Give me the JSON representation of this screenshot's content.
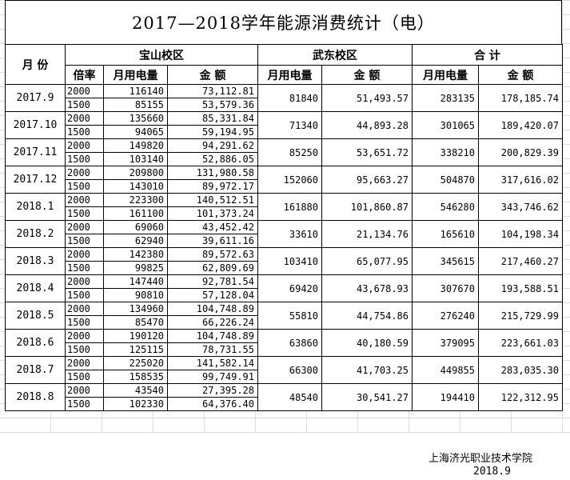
{
  "title": "2017—2018学年能源消费统计（电）",
  "headers": {
    "month": "月  份",
    "baoshan": "宝山校区",
    "wudong": "武东校区",
    "total": "合    计",
    "rate": "倍率",
    "usage": "月用电量",
    "amount": "金    额"
  },
  "rows": [
    {
      "month": "2017.9",
      "bs": [
        [
          "2000",
          "116140",
          "73,112.81"
        ],
        [
          "1500",
          "85155",
          "53,579.36"
        ]
      ],
      "wd_usage": "81840",
      "wd_amount": "51,493.57",
      "tot_usage": "283135",
      "tot_amount": "178,185.74"
    },
    {
      "month": "2017.10",
      "bs": [
        [
          "2000",
          "135660",
          "85,331.84"
        ],
        [
          "1500",
          "94065",
          "59,194.95"
        ]
      ],
      "wd_usage": "71340",
      "wd_amount": "44,893.28",
      "tot_usage": "301065",
      "tot_amount": "189,420.07"
    },
    {
      "month": "2017.11",
      "bs": [
        [
          "2000",
          "149820",
          "94,291.62"
        ],
        [
          "1500",
          "103140",
          "52,886.05"
        ]
      ],
      "wd_usage": "85250",
      "wd_amount": "53,651.72",
      "tot_usage": "338210",
      "tot_amount": "200,829.39"
    },
    {
      "month": "2017.12",
      "bs": [
        [
          "2000",
          "209800",
          "131,980.58"
        ],
        [
          "1500",
          "143010",
          "89,972.17"
        ]
      ],
      "wd_usage": "152060",
      "wd_amount": "95,663.27",
      "tot_usage": "504870",
      "tot_amount": "317,616.02"
    },
    {
      "month": "2018.1",
      "bs": [
        [
          "2000",
          "223300",
          "140,512.51"
        ],
        [
          "1500",
          "161100",
          "101,373.24"
        ]
      ],
      "wd_usage": "161880",
      "wd_amount": "101,860.87",
      "tot_usage": "546280",
      "tot_amount": "343,746.62"
    },
    {
      "month": "2018.2",
      "bs": [
        [
          "2000",
          "69060",
          "43,452.42"
        ],
        [
          "1500",
          "62940",
          "39,611.16"
        ]
      ],
      "wd_usage": "33610",
      "wd_amount": "21,134.76",
      "tot_usage": "165610",
      "tot_amount": "104,198.34"
    },
    {
      "month": "2018.3",
      "bs": [
        [
          "2000",
          "142380",
          "89,572.63"
        ],
        [
          "1500",
          "99825",
          "62,809.69"
        ]
      ],
      "wd_usage": "103410",
      "wd_amount": "65,077.95",
      "tot_usage": "345615",
      "tot_amount": "217,460.27"
    },
    {
      "month": "2018.4",
      "bs": [
        [
          "2000",
          "147440",
          "92,781.54"
        ],
        [
          "1500",
          "90810",
          "57,128.04"
        ]
      ],
      "wd_usage": "69420",
      "wd_amount": "43,678.93",
      "tot_usage": "307670",
      "tot_amount": "193,588.51"
    },
    {
      "month": "2018.5",
      "bs": [
        [
          "2000",
          "134960",
          "104,748.89"
        ],
        [
          "1500",
          "85470",
          "66,226.24"
        ]
      ],
      "wd_usage": "55810",
      "wd_amount": "44,754.86",
      "tot_usage": "276240",
      "tot_amount": "215,729.99"
    },
    {
      "month": "2018.6",
      "bs": [
        [
          "2000",
          "190120",
          "104,748.89"
        ],
        [
          "1500",
          "125115",
          "78,731.55"
        ]
      ],
      "wd_usage": "63860",
      "wd_amount": "40,180.59",
      "tot_usage": "379095",
      "tot_amount": "223,661.03"
    },
    {
      "month": "2018.7",
      "bs": [
        [
          "2000",
          "225020",
          "141,582.14"
        ],
        [
          "1500",
          "158535",
          "99,749.91"
        ]
      ],
      "wd_usage": "66300",
      "wd_amount": "41,703.25",
      "tot_usage": "449855",
      "tot_amount": "283,035.30"
    },
    {
      "month": "2018.8",
      "bs": [
        [
          "2000",
          "43540",
          "27,395.28"
        ],
        [
          "1500",
          "102330",
          "64,376.40"
        ]
      ],
      "wd_usage": "48540",
      "wd_amount": "30,541.27",
      "tot_usage": "194410",
      "tot_amount": "122,312.95"
    }
  ],
  "footer": {
    "org": "上海济光职业技术学院",
    "date": "2018.9"
  }
}
